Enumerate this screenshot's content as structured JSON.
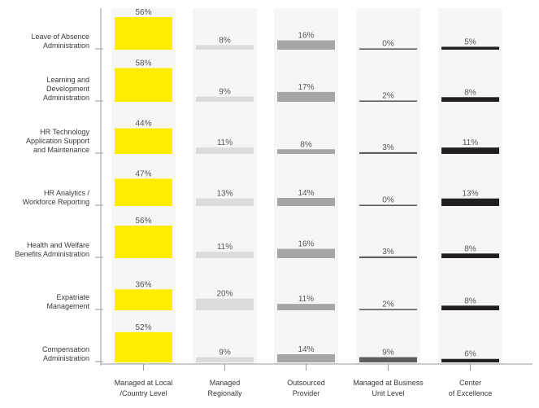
{
  "chart_data": {
    "type": "bar",
    "title": "",
    "xlabel": "",
    "ylabel": "",
    "layout": "small-multiples grid (rows = HR functions, columns = delivery models)",
    "value_format": "percent",
    "ylim": [
      0,
      60
    ],
    "rows": [
      [
        "Leave of Absence",
        "Administration"
      ],
      [
        "Learning and",
        "Development",
        "Administration"
      ],
      [
        "HR Technology",
        "Application Support",
        "and Maintenance"
      ],
      [
        "HR Analytics /",
        "Workforce Reporting"
      ],
      [
        "Health and Welfare",
        "Benefits Administration"
      ],
      [
        "Expatriate",
        "Management"
      ],
      [
        "Compensation",
        "Administration"
      ]
    ],
    "columns": [
      [
        "Managed at Local",
        "/Country Level"
      ],
      [
        "Managed",
        "Regionally"
      ],
      [
        "Outsourced",
        "Provider"
      ],
      [
        "Managed at Business",
        "Unit Level"
      ],
      [
        "Center",
        "of Excellence"
      ]
    ],
    "series": [
      {
        "name": "Managed at Local /Country Level",
        "color": "#ffed00",
        "values": [
          56,
          58,
          44,
          47,
          56,
          36,
          52
        ]
      },
      {
        "name": "Managed Regionally",
        "color": "#dcdcdc",
        "values": [
          8,
          9,
          11,
          13,
          11,
          20,
          9
        ]
      },
      {
        "name": "Outsourced Provider",
        "color": "#a6a6a6",
        "values": [
          16,
          17,
          8,
          14,
          16,
          11,
          14
        ]
      },
      {
        "name": "Managed at Business Unit Level",
        "color": "#5e5e5e",
        "values": [
          0,
          2,
          3,
          0,
          3,
          2,
          9
        ]
      },
      {
        "name": "Center of Excellence",
        "color": "#231f20",
        "values": [
          5,
          8,
          11,
          13,
          8,
          8,
          6
        ]
      }
    ],
    "grid": "alternating column shading",
    "legend": "none"
  }
}
